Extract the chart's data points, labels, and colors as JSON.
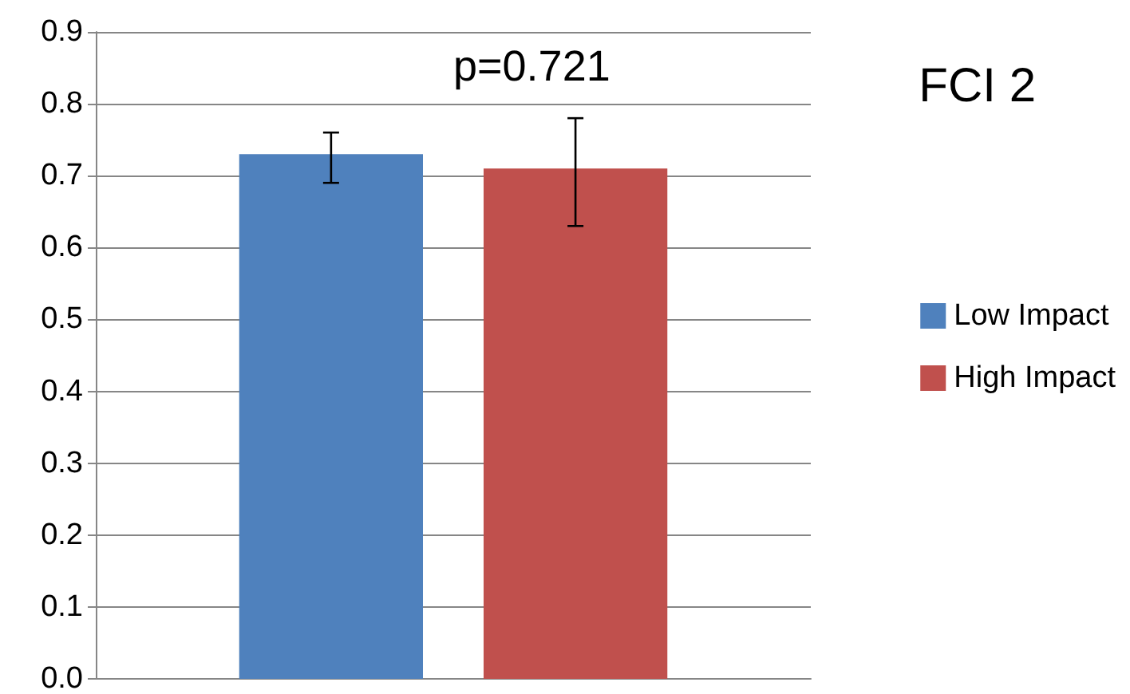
{
  "chart_data": {
    "type": "bar",
    "title": "FCI 2",
    "annotations": [
      "p=0.721"
    ],
    "categories": [
      null
    ],
    "series": [
      {
        "name": "Low Impact",
        "color": "#4f81bd",
        "values": [
          0.73
        ],
        "errors": [
          [
            0.69,
            0.76
          ]
        ]
      },
      {
        "name": "High Impact",
        "color": "#c0504d",
        "values": [
          0.71
        ],
        "errors": [
          [
            0.63,
            0.78
          ]
        ]
      }
    ],
    "ylim": [
      0,
      0.9
    ],
    "yticks": [
      {
        "value": 0,
        "label": "0.0"
      },
      0.1,
      0.2,
      0.3,
      0.4,
      0.5,
      0.6,
      0.7,
      0.8,
      0.9
    ],
    "grid": "y",
    "legend": "right"
  }
}
